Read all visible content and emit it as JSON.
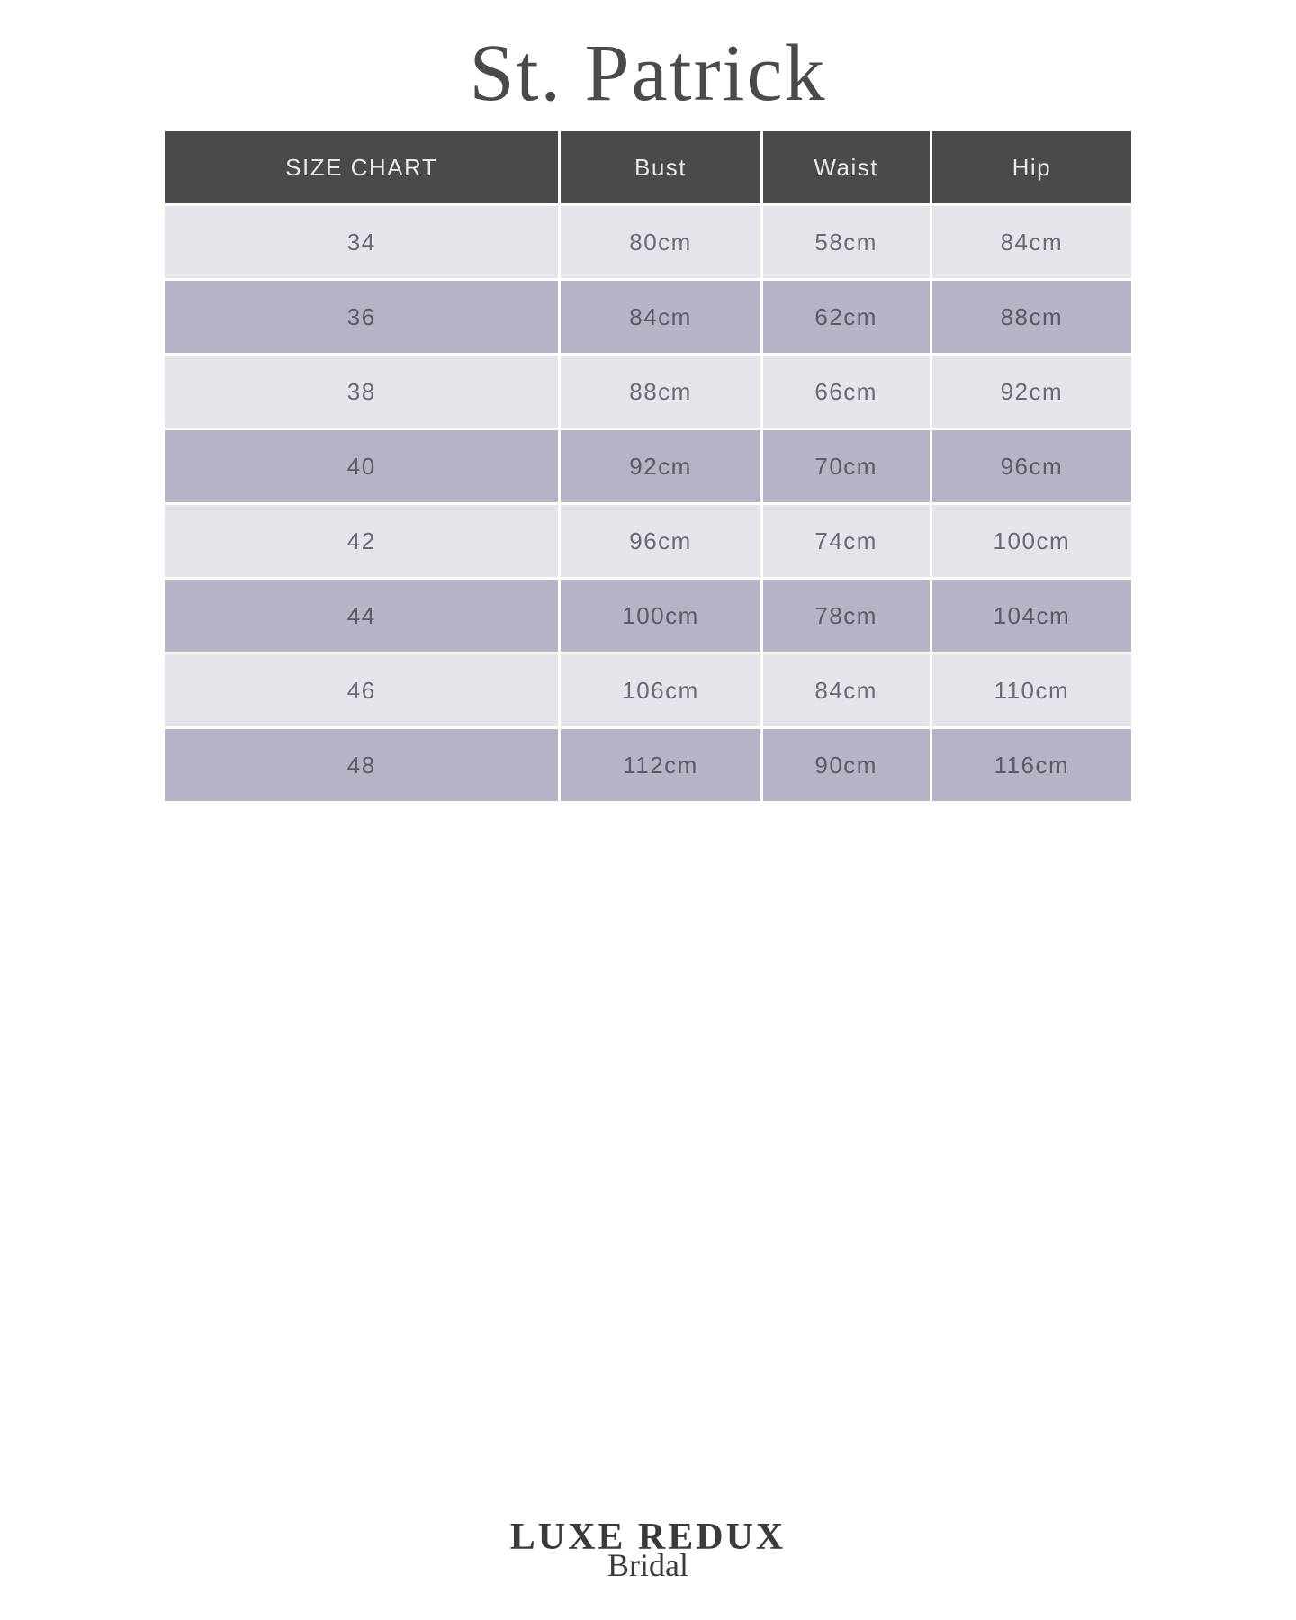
{
  "title": "St. Patrick",
  "table": {
    "type": "table",
    "header_bg": "#4a4a4a",
    "header_text_color": "#e8e8e8",
    "row_light_bg": "#e6e4ea",
    "row_dark_bg": "#b5b4c7",
    "cell_text_color": "#6a6a72",
    "columns": [
      "SIZE CHART",
      "Bust",
      "Waist",
      "Hip"
    ],
    "rows": [
      [
        "34",
        "80cm",
        "58cm",
        "84cm"
      ],
      [
        "36",
        "84cm",
        "62cm",
        "88cm"
      ],
      [
        "38",
        "88cm",
        "66cm",
        "92cm"
      ],
      [
        "40",
        "92cm",
        "70cm",
        "96cm"
      ],
      [
        "42",
        "96cm",
        "74cm",
        "100cm"
      ],
      [
        "44",
        "100cm",
        "78cm",
        "104cm"
      ],
      [
        "46",
        "106cm",
        "84cm",
        "110cm"
      ],
      [
        "48",
        "112cm",
        "90cm",
        "116cm"
      ]
    ]
  },
  "footer": {
    "main": "LUXE REDUX",
    "sub": "Bridal"
  }
}
